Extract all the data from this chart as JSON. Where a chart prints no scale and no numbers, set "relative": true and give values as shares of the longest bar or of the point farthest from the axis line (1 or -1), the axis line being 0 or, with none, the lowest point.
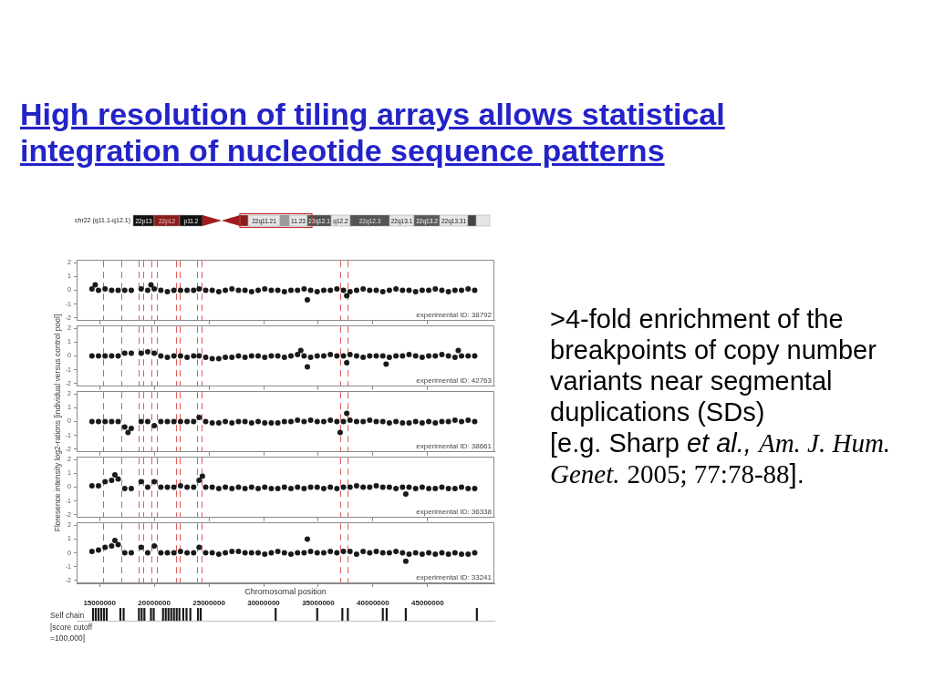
{
  "chart_data": [
    {
      "type": "other",
      "title": "High resolution of tiling arrays allows statistical integration of nucleotide sequence patterns",
      "annotations": [
        "chr22 (q11.1-q12.1)",
        "22p13",
        "22p12",
        "p11.2",
        "22q11.21",
        "11.23",
        "22q12.1",
        "q12.2",
        "22q12.3",
        "22q13.1",
        "22q13.2",
        "22q13.31"
      ]
    },
    {
      "type": "scatter",
      "color": "#1a1a1a",
      "marker": "circle",
      "xlim": [
        12900000,
        51100000
      ],
      "xticks": [
        15000000,
        20000000,
        25000000,
        30000000,
        35000000,
        40000000,
        45000000
      ],
      "ylim": [
        -2.2,
        2.2
      ],
      "yticks": [
        -2,
        -1,
        0,
        1,
        2
      ],
      "tick_labels": "y",
      "annotations": [
        "experimental ID: 38792"
      ],
      "ref_lines": [
        {
          "axis": "x",
          "value": 15300000,
          "color": "#e05a5a",
          "line_style": "dashed"
        },
        {
          "axis": "x",
          "value": 17000000,
          "color": "#e05a5a",
          "line_style": "dashed"
        },
        {
          "axis": "x",
          "value": 18600000,
          "color": "#e05a5a",
          "line_style": "dashed"
        },
        {
          "axis": "x",
          "value": 19000000,
          "color": "#e05a5a",
          "line_style": "dashed"
        },
        {
          "axis": "x",
          "value": 19700000,
          "color": "#e05a5a",
          "line_style": "dashed"
        },
        {
          "axis": "x",
          "value": 20200000,
          "color": "#e05a5a",
          "line_style": "dashed"
        },
        {
          "axis": "x",
          "value": 22000000,
          "color": "#e05a5a",
          "line_style": "dashed"
        },
        {
          "axis": "x",
          "value": 22300000,
          "color": "#e05a5a",
          "line_style": "dashed"
        },
        {
          "axis": "x",
          "value": 23900000,
          "color": "#e05a5a",
          "line_style": "dashed"
        },
        {
          "axis": "x",
          "value": 24300000,
          "color": "#e05a5a",
          "line_style": "dashed"
        },
        {
          "axis": "x",
          "value": 37000000,
          "color": "#e05a5a",
          "line_style": "dashed"
        },
        {
          "axis": "x",
          "value": 37700000,
          "color": "#e05a5a",
          "line_style": "dashed"
        }
      ],
      "x": [
        14300000,
        14900000,
        15500000,
        16100000,
        16700000,
        17300000,
        17900000,
        18800000,
        19400000,
        20000000,
        20600000,
        21200000,
        21800000,
        22400000,
        23000000,
        23600000,
        24100000,
        24700000,
        25300000,
        25900000,
        26500000,
        27100000,
        27700000,
        28300000,
        28900000,
        29500000,
        30100000,
        30700000,
        31300000,
        31900000,
        32500000,
        33100000,
        33700000,
        34300000,
        34900000,
        35500000,
        36100000,
        36700000,
        37300000,
        37900000,
        38500000,
        39100000,
        39700000,
        40300000,
        40900000,
        41500000,
        42100000,
        42700000,
        43300000,
        43900000,
        44500000,
        45100000,
        45700000,
        46300000,
        46900000,
        47500000,
        48100000,
        48700000,
        49300000,
        14600000,
        19700000,
        34000000,
        37600000
      ],
      "values": [
        0.1,
        0,
        0.1,
        0,
        0,
        0,
        0,
        0.1,
        0,
        0.1,
        0,
        -0.1,
        0,
        0,
        0,
        0,
        0.1,
        0,
        0,
        -0.1,
        0,
        0.1,
        0,
        0,
        -0.1,
        0,
        0.1,
        0,
        0,
        -0.1,
        0,
        0,
        0.1,
        0,
        -0.1,
        0,
        0,
        0.1,
        0,
        -0.1,
        0,
        0.1,
        0,
        0,
        -0.1,
        0,
        0.1,
        0,
        0,
        -0.1,
        0,
        0,
        0.1,
        0,
        -0.1,
        0,
        0,
        0.1,
        0,
        0.4,
        0.4,
        -0.7,
        -0.4
      ]
    },
    {
      "type": "scatter",
      "color": "#1a1a1a",
      "marker": "circle",
      "xlim": [
        12900000,
        51100000
      ],
      "xticks": [
        15000000,
        20000000,
        25000000,
        30000000,
        35000000,
        40000000,
        45000000
      ],
      "ylim": [
        -2.2,
        2.2
      ],
      "yticks": [
        -2,
        -1,
        0,
        1,
        2
      ],
      "tick_labels": "y",
      "annotations": [
        "experimental ID: 42763"
      ],
      "ref_lines": [
        {
          "axis": "x",
          "value": 15300000,
          "color": "#e05a5a",
          "line_style": "dashed"
        },
        {
          "axis": "x",
          "value": 17000000,
          "color": "#e05a5a",
          "line_style": "dashed"
        },
        {
          "axis": "x",
          "value": 18600000,
          "color": "#e05a5a",
          "line_style": "dashed"
        },
        {
          "axis": "x",
          "value": 19000000,
          "color": "#e05a5a",
          "line_style": "dashed"
        },
        {
          "axis": "x",
          "value": 19700000,
          "color": "#e05a5a",
          "line_style": "dashed"
        },
        {
          "axis": "x",
          "value": 20200000,
          "color": "#e05a5a",
          "line_style": "dashed"
        },
        {
          "axis": "x",
          "value": 22000000,
          "color": "#e05a5a",
          "line_style": "dashed"
        },
        {
          "axis": "x",
          "value": 22300000,
          "color": "#e05a5a",
          "line_style": "dashed"
        },
        {
          "axis": "x",
          "value": 23900000,
          "color": "#e05a5a",
          "line_style": "dashed"
        },
        {
          "axis": "x",
          "value": 24300000,
          "color": "#e05a5a",
          "line_style": "dashed"
        },
        {
          "axis": "x",
          "value": 37000000,
          "color": "#e05a5a",
          "line_style": "dashed"
        },
        {
          "axis": "x",
          "value": 37700000,
          "color": "#e05a5a",
          "line_style": "dashed"
        }
      ],
      "x": [
        14300000,
        14900000,
        15500000,
        16100000,
        16700000,
        17300000,
        17900000,
        18800000,
        19400000,
        20000000,
        20600000,
        21200000,
        21800000,
        22400000,
        23000000,
        23600000,
        24100000,
        24700000,
        25300000,
        25900000,
        26500000,
        27100000,
        27700000,
        28300000,
        28900000,
        29500000,
        30100000,
        30700000,
        31300000,
        31900000,
        32500000,
        33100000,
        33700000,
        34300000,
        34900000,
        35500000,
        36100000,
        36700000,
        37300000,
        37900000,
        38500000,
        39100000,
        39700000,
        40300000,
        40900000,
        41500000,
        42100000,
        42700000,
        43300000,
        43900000,
        44500000,
        45100000,
        45700000,
        46300000,
        46900000,
        47500000,
        48100000,
        48700000,
        49300000,
        33400000,
        34000000,
        37600000,
        41200000,
        47800000
      ],
      "values": [
        0,
        0,
        0,
        0,
        0,
        0.2,
        0.2,
        0.2,
        0.3,
        0.2,
        0,
        -0.1,
        0,
        0,
        -0.1,
        0,
        0,
        -0.1,
        -0.2,
        -0.2,
        -0.1,
        -0.1,
        0,
        -0.1,
        0,
        0,
        -0.1,
        0,
        0,
        -0.1,
        0,
        0.1,
        0,
        -0.1,
        0,
        0,
        0.1,
        0,
        0,
        0.1,
        0,
        -0.1,
        0,
        0,
        0,
        -0.1,
        0,
        0,
        0.1,
        0,
        -0.1,
        0,
        0,
        0.1,
        0,
        -0.1,
        0,
        0,
        0,
        0.4,
        -0.8,
        -0.5,
        -0.6,
        0.4
      ]
    },
    {
      "type": "scatter",
      "color": "#1a1a1a",
      "marker": "circle",
      "xlim": [
        12900000,
        51100000
      ],
      "xticks": [
        15000000,
        20000000,
        25000000,
        30000000,
        35000000,
        40000000,
        45000000
      ],
      "ylim": [
        -2.2,
        2.2
      ],
      "yticks": [
        -2,
        -1,
        0,
        1,
        2
      ],
      "tick_labels": "y",
      "ylabel": "Floresence intensity log2-rations [individual versus control pool]",
      "annotations": [
        "experimental ID: 38661"
      ],
      "ref_lines": [
        {
          "axis": "x",
          "value": 15300000,
          "color": "#e05a5a",
          "line_style": "dashed"
        },
        {
          "axis": "x",
          "value": 17000000,
          "color": "#e05a5a",
          "line_style": "dashed"
        },
        {
          "axis": "x",
          "value": 18600000,
          "color": "#e05a5a",
          "line_style": "dashed"
        },
        {
          "axis": "x",
          "value": 19000000,
          "color": "#e05a5a",
          "line_style": "dashed"
        },
        {
          "axis": "x",
          "value": 19700000,
          "color": "#e05a5a",
          "line_style": "dashed"
        },
        {
          "axis": "x",
          "value": 20200000,
          "color": "#e05a5a",
          "line_style": "dashed"
        },
        {
          "axis": "x",
          "value": 22000000,
          "color": "#e05a5a",
          "line_style": "dashed"
        },
        {
          "axis": "x",
          "value": 22300000,
          "color": "#e05a5a",
          "line_style": "dashed"
        },
        {
          "axis": "x",
          "value": 23900000,
          "color": "#e05a5a",
          "line_style": "dashed"
        },
        {
          "axis": "x",
          "value": 24300000,
          "color": "#e05a5a",
          "line_style": "dashed"
        },
        {
          "axis": "x",
          "value": 37000000,
          "color": "#e05a5a",
          "line_style": "dashed"
        },
        {
          "axis": "x",
          "value": 37700000,
          "color": "#e05a5a",
          "line_style": "dashed"
        }
      ],
      "x": [
        14300000,
        14900000,
        15500000,
        16100000,
        16700000,
        17300000,
        17900000,
        18800000,
        19400000,
        20000000,
        20600000,
        21200000,
        21800000,
        22400000,
        23000000,
        23600000,
        24100000,
        24700000,
        25300000,
        25900000,
        26500000,
        27100000,
        27700000,
        28300000,
        28900000,
        29500000,
        30100000,
        30700000,
        31300000,
        31900000,
        32500000,
        33100000,
        33700000,
        34300000,
        34900000,
        35500000,
        36100000,
        36700000,
        37300000,
        37900000,
        38500000,
        39100000,
        39700000,
        40300000,
        40900000,
        41500000,
        42100000,
        42700000,
        43300000,
        43900000,
        44500000,
        45100000,
        45700000,
        46300000,
        46900000,
        47500000,
        48100000,
        48700000,
        49300000,
        17600000,
        37000000,
        37600000
      ],
      "values": [
        0,
        0,
        0,
        0,
        0,
        -0.4,
        -0.5,
        0,
        0,
        -0.3,
        0,
        0,
        0,
        0,
        0,
        0,
        0.3,
        0,
        -0.1,
        -0.1,
        0,
        -0.1,
        0,
        0,
        -0.1,
        0,
        -0.1,
        -0.1,
        -0.1,
        0,
        0,
        0.1,
        0,
        0.1,
        0,
        0,
        0.1,
        0,
        0,
        0.1,
        0,
        0,
        0.1,
        0,
        0,
        -0.1,
        0,
        -0.1,
        -0.1,
        0,
        -0.1,
        0,
        -0.1,
        0,
        0,
        0.1,
        0,
        0.1,
        0,
        -0.8,
        -0.8,
        0.6
      ]
    },
    {
      "type": "scatter",
      "color": "#1a1a1a",
      "marker": "circle",
      "xlim": [
        12900000,
        51100000
      ],
      "xticks": [
        15000000,
        20000000,
        25000000,
        30000000,
        35000000,
        40000000,
        45000000
      ],
      "ylim": [
        -2.2,
        2.2
      ],
      "yticks": [
        -2,
        -1,
        0,
        1,
        2
      ],
      "tick_labels": "y",
      "annotations": [
        "experimental ID: 36338"
      ],
      "ref_lines": [
        {
          "axis": "x",
          "value": 15300000,
          "color": "#e05a5a",
          "line_style": "dashed"
        },
        {
          "axis": "x",
          "value": 17000000,
          "color": "#e05a5a",
          "line_style": "dashed"
        },
        {
          "axis": "x",
          "value": 18600000,
          "color": "#e05a5a",
          "line_style": "dashed"
        },
        {
          "axis": "x",
          "value": 19000000,
          "color": "#e05a5a",
          "line_style": "dashed"
        },
        {
          "axis": "x",
          "value": 19700000,
          "color": "#e05a5a",
          "line_style": "dashed"
        },
        {
          "axis": "x",
          "value": 20200000,
          "color": "#e05a5a",
          "line_style": "dashed"
        },
        {
          "axis": "x",
          "value": 22000000,
          "color": "#e05a5a",
          "line_style": "dashed"
        },
        {
          "axis": "x",
          "value": 22300000,
          "color": "#e05a5a",
          "line_style": "dashed"
        },
        {
          "axis": "x",
          "value": 23900000,
          "color": "#e05a5a",
          "line_style": "dashed"
        },
        {
          "axis": "x",
          "value": 24300000,
          "color": "#e05a5a",
          "line_style": "dashed"
        },
        {
          "axis": "x",
          "value": 37000000,
          "color": "#e05a5a",
          "line_style": "dashed"
        },
        {
          "axis": "x",
          "value": 37700000,
          "color": "#e05a5a",
          "line_style": "dashed"
        }
      ],
      "x": [
        14300000,
        14900000,
        15500000,
        16100000,
        16700000,
        17300000,
        17900000,
        18800000,
        19400000,
        20000000,
        20600000,
        21200000,
        21800000,
        22400000,
        23000000,
        23600000,
        24100000,
        24700000,
        25300000,
        25900000,
        26500000,
        27100000,
        27700000,
        28300000,
        28900000,
        29500000,
        30100000,
        30700000,
        31300000,
        31900000,
        32500000,
        33100000,
        33700000,
        34300000,
        34900000,
        35500000,
        36100000,
        36700000,
        37300000,
        37900000,
        38500000,
        39100000,
        39700000,
        40300000,
        40900000,
        41500000,
        42100000,
        42700000,
        43300000,
        43900000,
        44500000,
        45100000,
        45700000,
        46300000,
        46900000,
        47500000,
        48100000,
        48700000,
        49300000,
        16400000,
        24400000,
        43000000
      ],
      "values": [
        0.1,
        0.1,
        0.4,
        0.5,
        0.6,
        -0.1,
        -0.1,
        0.4,
        0,
        0.4,
        0,
        0,
        0,
        0.1,
        0,
        0,
        0.5,
        0,
        0,
        -0.1,
        0,
        -0.1,
        0,
        -0.1,
        0,
        -0.1,
        0,
        -0.1,
        -0.1,
        0,
        -0.1,
        0,
        -0.1,
        0,
        0,
        -0.1,
        0,
        -0.1,
        0,
        0,
        0.1,
        0,
        0,
        0.1,
        0,
        0,
        -0.1,
        0,
        0,
        -0.1,
        0,
        -0.1,
        -0.1,
        0,
        -0.1,
        -0.1,
        0,
        -0.1,
        -0.1,
        0.9,
        0.8,
        -0.5
      ]
    },
    {
      "type": "scatter",
      "color": "#1a1a1a",
      "marker": "circle",
      "xlim": [
        12900000,
        51100000
      ],
      "xticks": [
        15000000,
        20000000,
        25000000,
        30000000,
        35000000,
        40000000,
        45000000
      ],
      "ylim": [
        -2.2,
        2.2
      ],
      "yticks": [
        -2,
        -1,
        0,
        1,
        2
      ],
      "xlabel": "Chromosomal position",
      "annotations": [
        "experimental ID: 33241"
      ],
      "ref_lines": [
        {
          "axis": "x",
          "value": 15300000,
          "color": "#e05a5a",
          "line_style": "dashed"
        },
        {
          "axis": "x",
          "value": 17000000,
          "color": "#e05a5a",
          "line_style": "dashed"
        },
        {
          "axis": "x",
          "value": 18600000,
          "color": "#e05a5a",
          "line_style": "dashed"
        },
        {
          "axis": "x",
          "value": 19000000,
          "color": "#e05a5a",
          "line_style": "dashed"
        },
        {
          "axis": "x",
          "value": 19700000,
          "color": "#e05a5a",
          "line_style": "dashed"
        },
        {
          "axis": "x",
          "value": 20200000,
          "color": "#e05a5a",
          "line_style": "dashed"
        },
        {
          "axis": "x",
          "value": 22000000,
          "color": "#e05a5a",
          "line_style": "dashed"
        },
        {
          "axis": "x",
          "value": 22300000,
          "color": "#e05a5a",
          "line_style": "dashed"
        },
        {
          "axis": "x",
          "value": 23900000,
          "color": "#e05a5a",
          "line_style": "dashed"
        },
        {
          "axis": "x",
          "value": 24300000,
          "color": "#e05a5a",
          "line_style": "dashed"
        },
        {
          "axis": "x",
          "value": 37000000,
          "color": "#e05a5a",
          "line_style": "dashed"
        },
        {
          "axis": "x",
          "value": 37700000,
          "color": "#e05a5a",
          "line_style": "dashed"
        }
      ],
      "x": [
        14300000,
        14900000,
        15500000,
        16100000,
        16700000,
        17300000,
        17900000,
        18800000,
        19400000,
        20000000,
        20600000,
        21200000,
        21800000,
        22400000,
        23000000,
        23600000,
        24100000,
        24700000,
        25300000,
        25900000,
        26500000,
        27100000,
        27700000,
        28300000,
        28900000,
        29500000,
        30100000,
        30700000,
        31300000,
        31900000,
        32500000,
        33100000,
        33700000,
        34300000,
        34900000,
        35500000,
        36100000,
        36700000,
        37300000,
        37900000,
        38500000,
        39100000,
        39700000,
        40300000,
        40900000,
        41500000,
        42100000,
        42700000,
        43300000,
        43900000,
        44500000,
        45100000,
        45700000,
        46300000,
        46900000,
        47500000,
        48100000,
        48700000,
        49300000,
        16400000,
        34000000,
        43000000
      ],
      "values": [
        0.1,
        0.2,
        0.4,
        0.5,
        0.6,
        0,
        0,
        0.4,
        0,
        0.5,
        0,
        0,
        0,
        0.1,
        0,
        0,
        0.4,
        0,
        0,
        -0.1,
        0,
        0.1,
        0.1,
        0,
        0,
        0,
        -0.1,
        0,
        0.1,
        0,
        -0.1,
        0,
        0,
        0.1,
        0,
        0,
        0.1,
        0,
        0.1,
        0.1,
        -0.1,
        0.1,
        0,
        0.1,
        0,
        0,
        0.1,
        0,
        -0.1,
        0,
        -0.1,
        0,
        -0.1,
        0,
        -0.1,
        0,
        -0.1,
        -0.1,
        0,
        0.9,
        1,
        -0.6
      ]
    },
    {
      "type": "bar",
      "relative": true,
      "color": "#1a1a1a",
      "xlim": [
        12900000,
        51100000
      ],
      "tick_labels": false,
      "ylabel": "Self chain [score cutoff =100,000]",
      "x": [
        14400000,
        14650000,
        14900000,
        15150000,
        15400000,
        15650000,
        16900000,
        17200000,
        18600000,
        18850000,
        19100000,
        19700000,
        19950000,
        20800000,
        21050000,
        21300000,
        21550000,
        21800000,
        22050000,
        22300000,
        22650000,
        22950000,
        23300000,
        24000000,
        24250000,
        31100000,
        34900000,
        37200000,
        37700000,
        40900000,
        41250000,
        43000000,
        49500000
      ],
      "values": [
        1,
        1,
        1,
        1,
        1,
        1,
        1,
        1,
        1,
        1,
        1,
        1,
        1,
        1,
        1,
        1,
        1,
        1,
        1,
        1,
        1,
        1,
        1,
        1,
        1,
        1,
        1,
        1,
        1,
        1,
        1,
        1,
        1
      ]
    },
    {
      "type": "other",
      "annotations": [
        ">4-fold enrichment of the breakpoints of copy number variants near segmental duplications (SDs)",
        "[e.g. Sharp",
        "et al.,",
        "Am. J. Hum.",
        "Genet.",
        "2005; 77:78-88",
        "]."
      ]
    }
  ]
}
